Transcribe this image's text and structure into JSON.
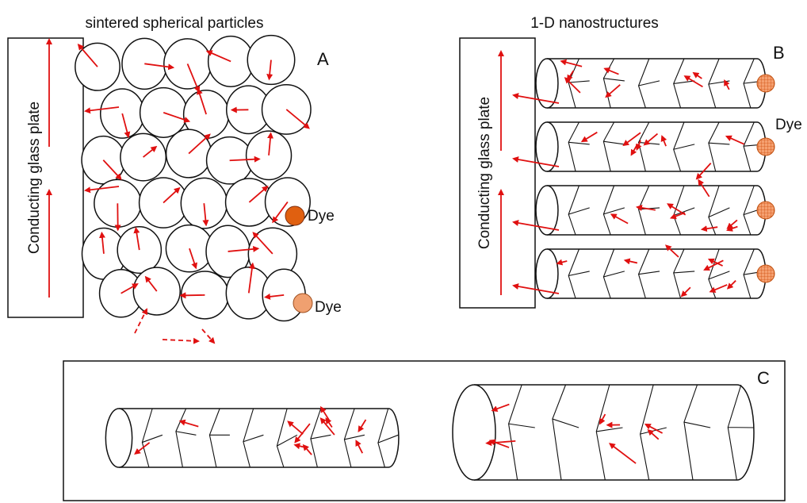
{
  "panel_a": {
    "title": "sintered spherical particles",
    "label": "A",
    "plate_label": "Conducting glass plate",
    "dye_labels": [
      "Dye",
      "Dye"
    ]
  },
  "panel_b": {
    "title": "1-D nanostructures",
    "label": "B",
    "plate_label": "Conducting glass plate",
    "dye_label": "Dye"
  },
  "panel_c": {
    "label": "C"
  }
}
